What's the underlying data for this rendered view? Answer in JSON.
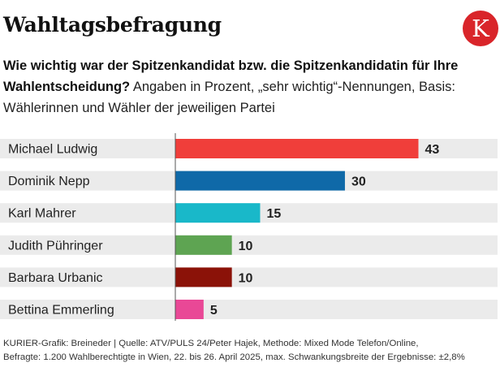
{
  "title": "Wahltagsbefragung",
  "logo": {
    "letter": "K",
    "color": "#d9252a"
  },
  "subtitle": {
    "bold": "Wie wichtig war der Spitzenkandidat bzw. die Spitzenkandidatin für Ihre Wahlentscheidung?",
    "normal": "Angaben in Prozent, „sehr wichtig“-Nennungen, Basis: Wählerinnen und Wähler der jeweiligen Partei"
  },
  "chart_data": {
    "type": "bar",
    "orientation": "horizontal",
    "categories": [
      "Michael Ludwig",
      "Dominik Nepp",
      "Karl Mahrer",
      "Judith Pühringer",
      "Barbara Urbanic",
      "Bettina Emmerling"
    ],
    "values": [
      43,
      30,
      15,
      10,
      10,
      5
    ],
    "colors": [
      "#f03e3a",
      "#0f69a8",
      "#19b8c9",
      "#5ea452",
      "#8b1208",
      "#e94896"
    ],
    "unit": "Prozent",
    "xlim": [
      0,
      57
    ]
  },
  "footer": {
    "line1": "KURIER-Grafik: Breineder | Quelle: ATV/PULS 24/Peter Hajek, Methode: Mixed Mode Telefon/Online,",
    "line2": "Befragte: 1.200 Wahlberechtigte in Wien, 22. bis 26. April 2025, max. Schwankungsbreite der Ergebnisse: ±2,8%"
  }
}
